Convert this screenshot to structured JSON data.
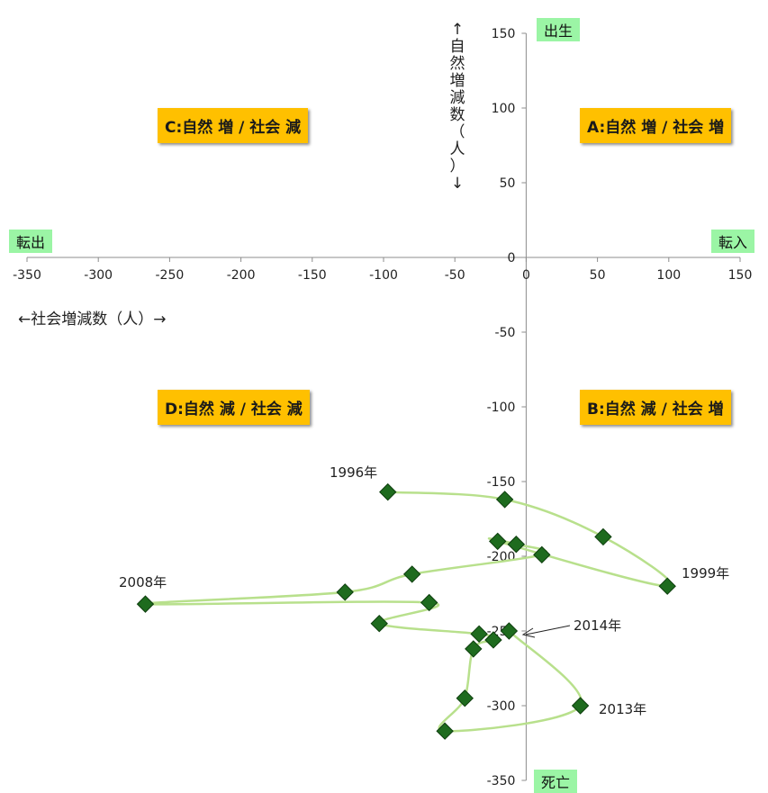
{
  "chart_data": {
    "type": "scatter",
    "title": "",
    "xlabel": "←社会増減数（人）→",
    "ylabel": "↑自然増減数（人）↓",
    "xlim": [
      -350,
      150
    ],
    "ylim": [
      -350,
      150
    ],
    "x_ticks": [
      "-350",
      "-300",
      "-250",
      "-200",
      "-150",
      "-100",
      "-50",
      "0",
      "50",
      "100",
      "150"
    ],
    "y_ticks": [
      "150",
      "100",
      "50",
      "0",
      "-50",
      "-100",
      "-150",
      "-200",
      "-250",
      "-300",
      "-350"
    ],
    "series": [
      {
        "connected": true,
        "points": [
          {
            "x": -97,
            "y": -157
          },
          {
            "x": -15,
            "y": -162
          },
          {
            "x": 54,
            "y": -187
          },
          {
            "x": 99,
            "y": -220
          },
          {
            "x": -20,
            "y": -190
          },
          {
            "x": -7,
            "y": -192
          },
          {
            "x": 11,
            "y": -199
          },
          {
            "x": -80,
            "y": -212
          },
          {
            "x": -127,
            "y": -224
          },
          {
            "x": -267,
            "y": -232
          },
          {
            "x": -68,
            "y": -231
          },
          {
            "x": -103,
            "y": -245
          },
          {
            "x": -33,
            "y": -252
          },
          {
            "x": -23,
            "y": -256
          },
          {
            "x": -37,
            "y": -262
          },
          {
            "x": -43,
            "y": -295
          },
          {
            "x": -57,
            "y": -317
          },
          {
            "x": 38,
            "y": -300
          },
          {
            "x": -12,
            "y": -250
          }
        ]
      }
    ],
    "annotations": {
      "y1996": "1996年",
      "y1999": "1999年",
      "y2008": "2008年",
      "y2013": "2013年",
      "y2014": "2014年"
    },
    "colors": {
      "line": "#b8e08c",
      "marker_fill": "#1e6b1e",
      "marker_stroke": "#0d3d0d",
      "quadrant_box": "#ffc000",
      "label_box": "#9bf5a5"
    }
  },
  "labels": {
    "quadrant_a": "A:自然 増 / 社会 増",
    "quadrant_b": "B:自然 減 / 社会 増",
    "quadrant_c": "C:自然 増 / 社会 減",
    "quadrant_d": "D:自然 減 / 社会 減",
    "birth": "出生",
    "death": "死亡",
    "move_in": "転入",
    "move_out": "転出"
  }
}
